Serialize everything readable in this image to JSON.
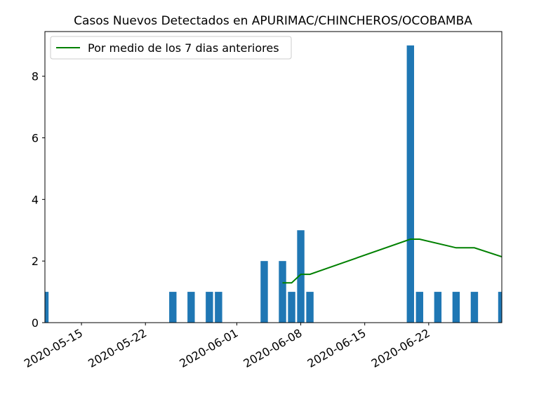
{
  "chart_data": {
    "type": "bar",
    "title": "Casos Nuevos Detectados en APURIMAC/CHINCHEROS/OCOBAMBA",
    "xlabel": "",
    "ylabel": "",
    "xlim": [
      "2020-05-11",
      "2020-06-30"
    ],
    "ylim": [
      0,
      9.45
    ],
    "x_ticks": [
      "2020-05-15",
      "2020-05-22",
      "2020-06-01",
      "2020-06-08",
      "2020-06-15",
      "2020-06-22"
    ],
    "y_ticks": [
      0,
      2,
      4,
      6,
      8
    ],
    "grid": false,
    "legend_position": "top-left",
    "bar_color": "#1f77b4",
    "line_color": "#008000",
    "bars": [
      {
        "date": "2020-05-11",
        "value": 1
      },
      {
        "date": "2020-05-25",
        "value": 1
      },
      {
        "date": "2020-05-27",
        "value": 1
      },
      {
        "date": "2020-05-29",
        "value": 1
      },
      {
        "date": "2020-05-30",
        "value": 1
      },
      {
        "date": "2020-06-04",
        "value": 2
      },
      {
        "date": "2020-06-06",
        "value": 2
      },
      {
        "date": "2020-06-07",
        "value": 1
      },
      {
        "date": "2020-06-08",
        "value": 3
      },
      {
        "date": "2020-06-09",
        "value": 1
      },
      {
        "date": "2020-06-20",
        "value": 9
      },
      {
        "date": "2020-06-21",
        "value": 1
      },
      {
        "date": "2020-06-23",
        "value": 1
      },
      {
        "date": "2020-06-25",
        "value": 1
      },
      {
        "date": "2020-06-27",
        "value": 1
      },
      {
        "date": "2020-06-30",
        "value": 1
      }
    ],
    "series": [
      {
        "name": "Por medio de los 7 dias anteriores",
        "type": "line",
        "points": [
          {
            "date": "2020-06-06",
            "value": 1.29
          },
          {
            "date": "2020-06-07",
            "value": 1.29
          },
          {
            "date": "2020-06-08",
            "value": 1.57
          },
          {
            "date": "2020-06-09",
            "value": 1.57
          },
          {
            "date": "2020-06-20",
            "value": 2.71
          },
          {
            "date": "2020-06-21",
            "value": 2.71
          },
          {
            "date": "2020-06-25",
            "value": 2.43
          },
          {
            "date": "2020-06-27",
            "value": 2.43
          },
          {
            "date": "2020-06-30",
            "value": 2.14
          }
        ]
      }
    ]
  }
}
